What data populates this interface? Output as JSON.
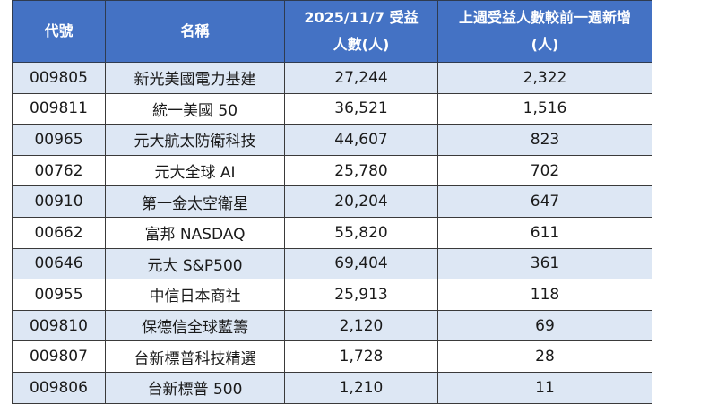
{
  "table": {
    "headers": {
      "code": "代號",
      "name": "名稱",
      "holders_line1": "2025/11/7 受益",
      "holders_line2": "人數(人)",
      "increase_line1": "上週受益人數較前一週新增",
      "increase_line2": "(人)"
    },
    "rows": [
      {
        "code": "009805",
        "name": "新光美國電力基建",
        "holders": "27,244",
        "increase": "2,322"
      },
      {
        "code": "009811",
        "name": "統一美國 50",
        "holders": "36,521",
        "increase": "1,516"
      },
      {
        "code": "00965",
        "name": "元大航太防衛科技",
        "holders": "44,607",
        "increase": "823"
      },
      {
        "code": "00762",
        "name": "元大全球 AI",
        "holders": "25,780",
        "increase": "702"
      },
      {
        "code": "00910",
        "name": "第一金太空衛星",
        "holders": "20,204",
        "increase": "647"
      },
      {
        "code": "00662",
        "name": "富邦 NASDAQ",
        "holders": "55,820",
        "increase": "611"
      },
      {
        "code": "00646",
        "name": "元大 S&P500",
        "holders": "69,404",
        "increase": "361"
      },
      {
        "code": "00955",
        "name": "中信日本商社",
        "holders": "25,913",
        "increase": "118"
      },
      {
        "code": "009810",
        "name": "保德信全球藍籌",
        "holders": "2,120",
        "increase": "69"
      },
      {
        "code": "009807",
        "name": "台新標普科技精選",
        "holders": "1,728",
        "increase": "28"
      },
      {
        "code": "009806",
        "name": "台新標普 500",
        "holders": "1,210",
        "increase": "11"
      }
    ]
  },
  "colors": {
    "header_bg": "#4472c4",
    "header_text": "#ffffff",
    "row_odd_bg": "#dde7f4",
    "row_even_bg": "#ffffff",
    "border": "#3a3a3a"
  }
}
